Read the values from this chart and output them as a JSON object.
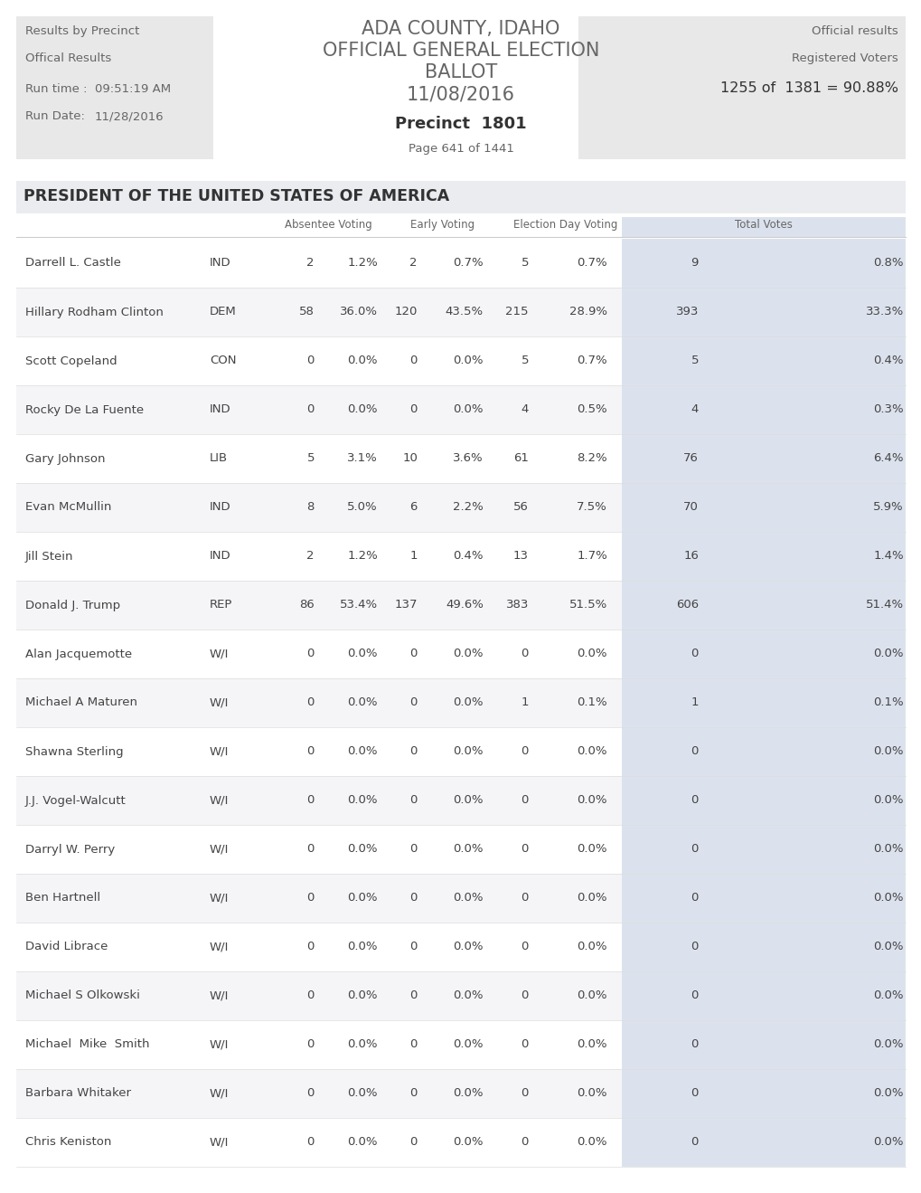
{
  "header_left_lines": [
    "Results by Precinct",
    "Offical Results",
    "Run time :",
    "09:51:19 AM",
    "Run Date:",
    "11/28/2016"
  ],
  "header_center_lines": [
    "ADA COUNTY, IDAHO",
    "OFFICIAL GENERAL ELECTION",
    "BALLOT",
    "11/08/2016"
  ],
  "precinct_label": "Precinct  1801",
  "page_label": "Page 641 of 1441",
  "header_right_lines": [
    "Official results",
    "Registered Voters",
    "1255 of  1381 = 90.88%"
  ],
  "section_title": "PRESIDENT OF THE UNITED STATES OF AMERICA",
  "candidates": [
    {
      "name": "Darrell L. Castle",
      "party": "IND",
      "abs_n": "2",
      "abs_p": "1.2%",
      "ev_n": "2",
      "ev_p": "0.7%",
      "ed_n": "5",
      "ed_p": "0.7%",
      "tot_n": "9",
      "tot_p": "0.8%"
    },
    {
      "name": "Hillary Rodham Clinton",
      "party": "DEM",
      "abs_n": "58",
      "abs_p": "36.0%",
      "ev_n": "120",
      "ev_p": "43.5%",
      "ed_n": "215",
      "ed_p": "28.9%",
      "tot_n": "393",
      "tot_p": "33.3%"
    },
    {
      "name": "Scott Copeland",
      "party": "CON",
      "abs_n": "0",
      "abs_p": "0.0%",
      "ev_n": "0",
      "ev_p": "0.0%",
      "ed_n": "5",
      "ed_p": "0.7%",
      "tot_n": "5",
      "tot_p": "0.4%"
    },
    {
      "name": "Rocky De La Fuente",
      "party": "IND",
      "abs_n": "0",
      "abs_p": "0.0%",
      "ev_n": "0",
      "ev_p": "0.0%",
      "ed_n": "4",
      "ed_p": "0.5%",
      "tot_n": "4",
      "tot_p": "0.3%"
    },
    {
      "name": "Gary Johnson",
      "party": "LIB",
      "abs_n": "5",
      "abs_p": "3.1%",
      "ev_n": "10",
      "ev_p": "3.6%",
      "ed_n": "61",
      "ed_p": "8.2%",
      "tot_n": "76",
      "tot_p": "6.4%"
    },
    {
      "name": "Evan McMullin",
      "party": "IND",
      "abs_n": "8",
      "abs_p": "5.0%",
      "ev_n": "6",
      "ev_p": "2.2%",
      "ed_n": "56",
      "ed_p": "7.5%",
      "tot_n": "70",
      "tot_p": "5.9%"
    },
    {
      "name": "Jill Stein",
      "party": "IND",
      "abs_n": "2",
      "abs_p": "1.2%",
      "ev_n": "1",
      "ev_p": "0.4%",
      "ed_n": "13",
      "ed_p": "1.7%",
      "tot_n": "16",
      "tot_p": "1.4%"
    },
    {
      "name": "Donald J. Trump",
      "party": "REP",
      "abs_n": "86",
      "abs_p": "53.4%",
      "ev_n": "137",
      "ev_p": "49.6%",
      "ed_n": "383",
      "ed_p": "51.5%",
      "tot_n": "606",
      "tot_p": "51.4%"
    },
    {
      "name": "Alan Jacquemotte",
      "party": "W/I",
      "abs_n": "0",
      "abs_p": "0.0%",
      "ev_n": "0",
      "ev_p": "0.0%",
      "ed_n": "0",
      "ed_p": "0.0%",
      "tot_n": "0",
      "tot_p": "0.0%"
    },
    {
      "name": "Michael A Maturen",
      "party": "W/I",
      "abs_n": "0",
      "abs_p": "0.0%",
      "ev_n": "0",
      "ev_p": "0.0%",
      "ed_n": "1",
      "ed_p": "0.1%",
      "tot_n": "1",
      "tot_p": "0.1%"
    },
    {
      "name": "Shawna Sterling",
      "party": "W/I",
      "abs_n": "0",
      "abs_p": "0.0%",
      "ev_n": "0",
      "ev_p": "0.0%",
      "ed_n": "0",
      "ed_p": "0.0%",
      "tot_n": "0",
      "tot_p": "0.0%"
    },
    {
      "name": "J.J. Vogel-Walcutt",
      "party": "W/I",
      "abs_n": "0",
      "abs_p": "0.0%",
      "ev_n": "0",
      "ev_p": "0.0%",
      "ed_n": "0",
      "ed_p": "0.0%",
      "tot_n": "0",
      "tot_p": "0.0%"
    },
    {
      "name": "Darryl W. Perry",
      "party": "W/I",
      "abs_n": "0",
      "abs_p": "0.0%",
      "ev_n": "0",
      "ev_p": "0.0%",
      "ed_n": "0",
      "ed_p": "0.0%",
      "tot_n": "0",
      "tot_p": "0.0%"
    },
    {
      "name": "Ben Hartnell",
      "party": "W/I",
      "abs_n": "0",
      "abs_p": "0.0%",
      "ev_n": "0",
      "ev_p": "0.0%",
      "ed_n": "0",
      "ed_p": "0.0%",
      "tot_n": "0",
      "tot_p": "0.0%"
    },
    {
      "name": "David Librace",
      "party": "W/I",
      "abs_n": "0",
      "abs_p": "0.0%",
      "ev_n": "0",
      "ev_p": "0.0%",
      "ed_n": "0",
      "ed_p": "0.0%",
      "tot_n": "0",
      "tot_p": "0.0%"
    },
    {
      "name": "Michael S Olkowski",
      "party": "W/I",
      "abs_n": "0",
      "abs_p": "0.0%",
      "ev_n": "0",
      "ev_p": "0.0%",
      "ed_n": "0",
      "ed_p": "0.0%",
      "tot_n": "0",
      "tot_p": "0.0%"
    },
    {
      "name": "Michael  Mike  Smith",
      "party": "W/I",
      "abs_n": "0",
      "abs_p": "0.0%",
      "ev_n": "0",
      "ev_p": "0.0%",
      "ed_n": "0",
      "ed_p": "0.0%",
      "tot_n": "0",
      "tot_p": "0.0%"
    },
    {
      "name": "Barbara Whitaker",
      "party": "W/I",
      "abs_n": "0",
      "abs_p": "0.0%",
      "ev_n": "0",
      "ev_p": "0.0%",
      "ed_n": "0",
      "ed_p": "0.0%",
      "tot_n": "0",
      "tot_p": "0.0%"
    },
    {
      "name": "Chris Keniston",
      "party": "W/I",
      "abs_n": "0",
      "abs_p": "0.0%",
      "ev_n": "0",
      "ev_p": "0.0%",
      "ed_n": "0",
      "ed_p": "0.0%",
      "tot_n": "0",
      "tot_p": "0.0%"
    }
  ],
  "bg_color": "#ffffff",
  "header_box_color": "#e8e8e8",
  "section_bg": "#eaecf0",
  "total_col_bg": "#dce2ed",
  "text_color": "#666666",
  "dark_text": "#444444",
  "title_text": "#333333"
}
